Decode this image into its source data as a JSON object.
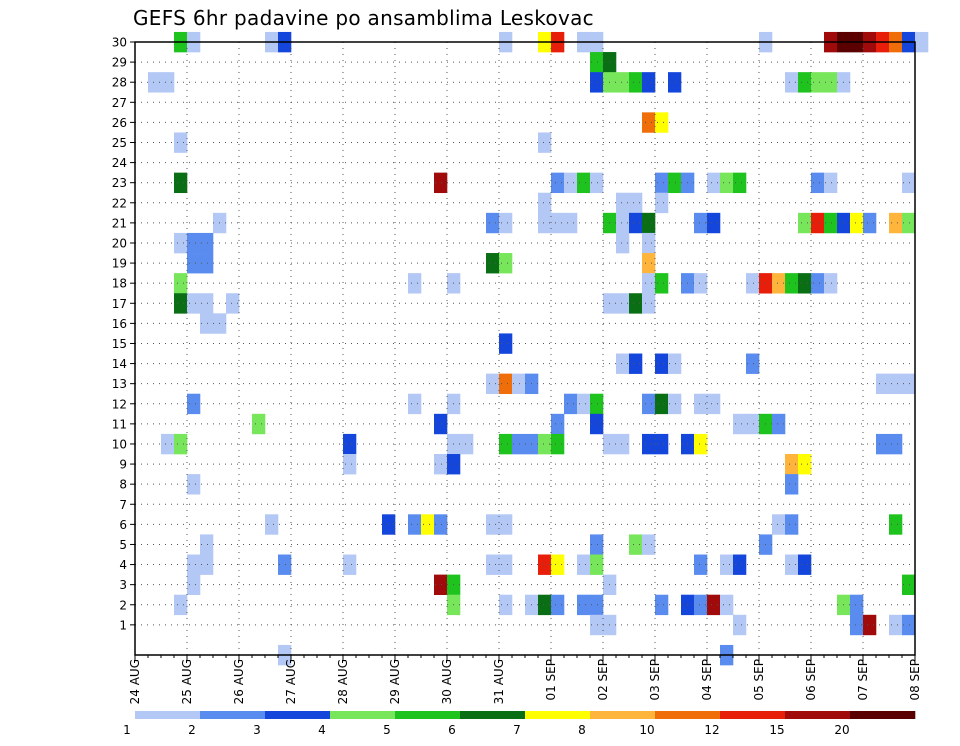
{
  "chart_data": {
    "type": "heatmap",
    "title": "GEFS 6hr padavine po ansamblima Leskovac",
    "x_tick_labels": [
      "24 AUG",
      "25 AUG",
      "26 AUG",
      "27 AUG",
      "28 AUG",
      "29 AUG",
      "30 AUG",
      "31 AUG",
      "01 SEP",
      "02 SEP",
      "03 SEP",
      "04 SEP",
      "05 SEP",
      "06 SEP",
      "07 SEP",
      "08 SEP"
    ],
    "x_units": "6-hour steps from 24 AUG 00Z",
    "x_range": [
      0,
      60
    ],
    "y_tick_labels": [
      "1",
      "2",
      "3",
      "4",
      "5",
      "6",
      "7",
      "8",
      "9",
      "10",
      "11",
      "12",
      "13",
      "14",
      "15",
      "16",
      "17",
      "18",
      "19",
      "20",
      "21",
      "22",
      "23",
      "24",
      "25",
      "26",
      "27",
      "28",
      "29",
      "30"
    ],
    "y_range": [
      0,
      30
    ],
    "grid": true,
    "legend": {
      "placement": "bottom",
      "labels": [
        "1",
        "2",
        "3",
        "4",
        "5",
        "6",
        "7",
        "8",
        "10",
        "12",
        "15",
        "20"
      ],
      "colors": [
        "#b4c8f5",
        "#5a8cf0",
        "#1446dc",
        "#78e65a",
        "#1ec31e",
        "#0a6e14",
        "#ffff00",
        "#ffb43c",
        "#f06e0a",
        "#e61e0a",
        "#a00a0a",
        "#5a0000"
      ]
    },
    "bins": [
      1,
      2,
      3,
      4,
      5,
      6,
      7,
      8,
      10,
      12,
      15,
      20
    ],
    "cells": [
      [
        3,
        30,
        4
      ],
      [
        4,
        30,
        0
      ],
      [
        10,
        30,
        0
      ],
      [
        11,
        30,
        2
      ],
      [
        28,
        30,
        0
      ],
      [
        31,
        30,
        6
      ],
      [
        32,
        30,
        9
      ],
      [
        34,
        30,
        0
      ],
      [
        35,
        30,
        0
      ],
      [
        48,
        30,
        0
      ],
      [
        53,
        30,
        10
      ],
      [
        54,
        30,
        11
      ],
      [
        55,
        30,
        11
      ],
      [
        56,
        30,
        10
      ],
      [
        57,
        30,
        9
      ],
      [
        58,
        30,
        8
      ],
      [
        59,
        30,
        2
      ],
      [
        60,
        30,
        0
      ],
      [
        35,
        29,
        4
      ],
      [
        36,
        29,
        5
      ],
      [
        1,
        28,
        0
      ],
      [
        2,
        28,
        0
      ],
      [
        35,
        28,
        2
      ],
      [
        36,
        28,
        3
      ],
      [
        37,
        28,
        3
      ],
      [
        38,
        28,
        4
      ],
      [
        39,
        28,
        2
      ],
      [
        41,
        28,
        2
      ],
      [
        50,
        28,
        0
      ],
      [
        51,
        28,
        4
      ],
      [
        52,
        28,
        3
      ],
      [
        53,
        28,
        3
      ],
      [
        54,
        28,
        0
      ],
      [
        39,
        26,
        8
      ],
      [
        40,
        26,
        6
      ],
      [
        3,
        25,
        0
      ],
      [
        31,
        25,
        0
      ],
      [
        3,
        23,
        5
      ],
      [
        23,
        23,
        10
      ],
      [
        32,
        23,
        1
      ],
      [
        33,
        23,
        0
      ],
      [
        34,
        23,
        4
      ],
      [
        35,
        23,
        0
      ],
      [
        40,
        23,
        1
      ],
      [
        41,
        23,
        4
      ],
      [
        42,
        23,
        1
      ],
      [
        44,
        23,
        0
      ],
      [
        45,
        23,
        3
      ],
      [
        46,
        23,
        4
      ],
      [
        52,
        23,
        1
      ],
      [
        53,
        23,
        0
      ],
      [
        59,
        23,
        0
      ],
      [
        31,
        22,
        0
      ],
      [
        37,
        22,
        0
      ],
      [
        38,
        22,
        0
      ],
      [
        40,
        22,
        0
      ],
      [
        6,
        21,
        0
      ],
      [
        27,
        21,
        1
      ],
      [
        28,
        21,
        0
      ],
      [
        31,
        21,
        0
      ],
      [
        32,
        21,
        0
      ],
      [
        33,
        21,
        0
      ],
      [
        36,
        21,
        4
      ],
      [
        37,
        21,
        0
      ],
      [
        38,
        21,
        2
      ],
      [
        39,
        21,
        5
      ],
      [
        43,
        21,
        1
      ],
      [
        44,
        21,
        2
      ],
      [
        51,
        21,
        3
      ],
      [
        52,
        21,
        9
      ],
      [
        53,
        21,
        4
      ],
      [
        54,
        21,
        2
      ],
      [
        55,
        21,
        6
      ],
      [
        56,
        21,
        1
      ],
      [
        58,
        21,
        7
      ],
      [
        59,
        21,
        3
      ],
      [
        3,
        20,
        0
      ],
      [
        4,
        20,
        1
      ],
      [
        5,
        20,
        1
      ],
      [
        37,
        20,
        0
      ],
      [
        39,
        20,
        0
      ],
      [
        4,
        19,
        1
      ],
      [
        5,
        19,
        1
      ],
      [
        39,
        19,
        7
      ],
      [
        27,
        19,
        5
      ],
      [
        28,
        19,
        3
      ],
      [
        3,
        18,
        3
      ],
      [
        21,
        18,
        0
      ],
      [
        24,
        18,
        0
      ],
      [
        39,
        18,
        0
      ],
      [
        40,
        18,
        4
      ],
      [
        42,
        18,
        1
      ],
      [
        43,
        18,
        0
      ],
      [
        47,
        18,
        0
      ],
      [
        48,
        18,
        9
      ],
      [
        49,
        18,
        7
      ],
      [
        50,
        18,
        4
      ],
      [
        51,
        18,
        5
      ],
      [
        52,
        18,
        1
      ],
      [
        53,
        18,
        0
      ],
      [
        3,
        17,
        5
      ],
      [
        4,
        17,
        0
      ],
      [
        5,
        17,
        0
      ],
      [
        7,
        17,
        0
      ],
      [
        36,
        17,
        0
      ],
      [
        37,
        17,
        0
      ],
      [
        38,
        17,
        5
      ],
      [
        39,
        17,
        0
      ],
      [
        5,
        16,
        0
      ],
      [
        6,
        16,
        0
      ],
      [
        28,
        15,
        2
      ],
      [
        37,
        14,
        0
      ],
      [
        38,
        14,
        2
      ],
      [
        40,
        14,
        2
      ],
      [
        41,
        14,
        0
      ],
      [
        47,
        14,
        1
      ],
      [
        27,
        13,
        0
      ],
      [
        28,
        13,
        8
      ],
      [
        29,
        13,
        0
      ],
      [
        30,
        13,
        1
      ],
      [
        57,
        13,
        0
      ],
      [
        58,
        13,
        0
      ],
      [
        59,
        13,
        0
      ],
      [
        4,
        12,
        1
      ],
      [
        21,
        12,
        0
      ],
      [
        24,
        12,
        0
      ],
      [
        33,
        12,
        1
      ],
      [
        34,
        12,
        0
      ],
      [
        35,
        12,
        4
      ],
      [
        39,
        12,
        1
      ],
      [
        40,
        12,
        5
      ],
      [
        41,
        12,
        0
      ],
      [
        43,
        12,
        0
      ],
      [
        44,
        12,
        0
      ],
      [
        9,
        11,
        3
      ],
      [
        23,
        11,
        2
      ],
      [
        32,
        11,
        1
      ],
      [
        35,
        11,
        2
      ],
      [
        46,
        11,
        0
      ],
      [
        47,
        11,
        0
      ],
      [
        48,
        11,
        4
      ],
      [
        49,
        11,
        1
      ],
      [
        2,
        10,
        0
      ],
      [
        3,
        10,
        3
      ],
      [
        16,
        10,
        2
      ],
      [
        24,
        10,
        0
      ],
      [
        25,
        10,
        0
      ],
      [
        28,
        10,
        4
      ],
      [
        29,
        10,
        1
      ],
      [
        30,
        10,
        1
      ],
      [
        31,
        10,
        3
      ],
      [
        32,
        10,
        4
      ],
      [
        36,
        10,
        0
      ],
      [
        37,
        10,
        0
      ],
      [
        39,
        10,
        2
      ],
      [
        40,
        10,
        2
      ],
      [
        42,
        10,
        2
      ],
      [
        43,
        10,
        6
      ],
      [
        57,
        10,
        1
      ],
      [
        58,
        10,
        1
      ],
      [
        16,
        9,
        0
      ],
      [
        23,
        9,
        0
      ],
      [
        24,
        9,
        2
      ],
      [
        50,
        9,
        7
      ],
      [
        51,
        9,
        6
      ],
      [
        4,
        8,
        0
      ],
      [
        50,
        8,
        1
      ],
      [
        10,
        6,
        0
      ],
      [
        19,
        6,
        2
      ],
      [
        21,
        6,
        1
      ],
      [
        22,
        6,
        6
      ],
      [
        23,
        6,
        1
      ],
      [
        27,
        6,
        0
      ],
      [
        28,
        6,
        0
      ],
      [
        49,
        6,
        0
      ],
      [
        50,
        6,
        1
      ],
      [
        58,
        6,
        4
      ],
      [
        5,
        5,
        0
      ],
      [
        35,
        5,
        1
      ],
      [
        38,
        5,
        3
      ],
      [
        39,
        5,
        0
      ],
      [
        48,
        5,
        1
      ],
      [
        4,
        4,
        0
      ],
      [
        5,
        4,
        0
      ],
      [
        11,
        4,
        1
      ],
      [
        16,
        4,
        0
      ],
      [
        27,
        4,
        0
      ],
      [
        28,
        4,
        0
      ],
      [
        31,
        4,
        9
      ],
      [
        32,
        4,
        6
      ],
      [
        34,
        4,
        0
      ],
      [
        35,
        4,
        3
      ],
      [
        43,
        4,
        1
      ],
      [
        45,
        4,
        0
      ],
      [
        46,
        4,
        2
      ],
      [
        50,
        4,
        0
      ],
      [
        51,
        4,
        2
      ],
      [
        4,
        3,
        0
      ],
      [
        23,
        3,
        10
      ],
      [
        24,
        3,
        4
      ],
      [
        36,
        3,
        0
      ],
      [
        59,
        3,
        4
      ],
      [
        3,
        2,
        0
      ],
      [
        24,
        2,
        3
      ],
      [
        28,
        2,
        0
      ],
      [
        30,
        2,
        0
      ],
      [
        31,
        2,
        5
      ],
      [
        32,
        2,
        1
      ],
      [
        34,
        2,
        1
      ],
      [
        35,
        2,
        1
      ],
      [
        40,
        2,
        1
      ],
      [
        42,
        2,
        2
      ],
      [
        43,
        2,
        1
      ],
      [
        44,
        2,
        10
      ],
      [
        45,
        2,
        0
      ],
      [
        54,
        2,
        3
      ],
      [
        55,
        2,
        1
      ],
      [
        35,
        1,
        0
      ],
      [
        36,
        1,
        0
      ],
      [
        46,
        1,
        0
      ],
      [
        55,
        1,
        1
      ],
      [
        56,
        1,
        10
      ],
      [
        58,
        1,
        0
      ],
      [
        59,
        1,
        1
      ],
      [
        45,
        0,
        1
      ],
      [
        11,
        0,
        0
      ]
    ]
  }
}
